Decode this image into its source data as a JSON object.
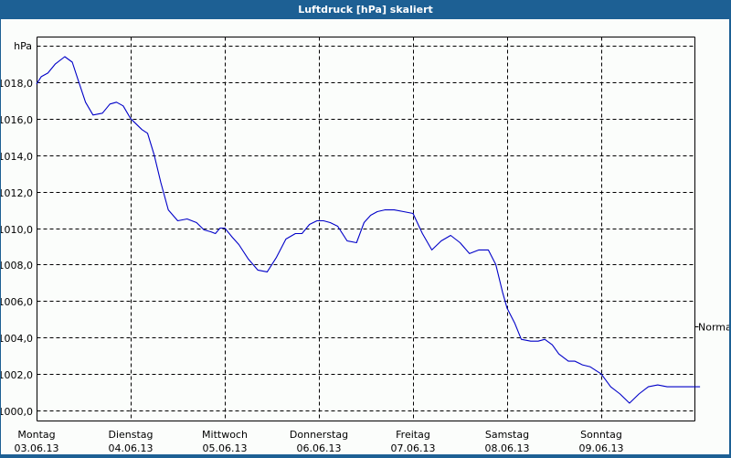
{
  "window": {
    "title": "Luftdruck [hPa] skaliert"
  },
  "chart_data": {
    "type": "line",
    "title": "Luftdruck [hPa] skaliert",
    "xlabel": "",
    "ylabel": "hPa",
    "ylim": [
      999.5,
      1020.5
    ],
    "grid": true,
    "y_ticks": [
      "1018,0",
      "1016,0",
      "1014,0",
      "1012,0",
      "1010,0",
      "1008,0",
      "1006,0",
      "1004,0",
      "1002,0",
      "1000,0"
    ],
    "y_tick_values": [
      1018,
      1016,
      1014,
      1012,
      1010,
      1008,
      1006,
      1004,
      1002,
      1000
    ],
    "y_unit_label": "hPa",
    "x_ticks": [
      {
        "day": "Montag",
        "date": "03.06.13"
      },
      {
        "day": "Dienstag",
        "date": "04.06.13"
      },
      {
        "day": "Mittwoch",
        "date": "05.06.13"
      },
      {
        "day": "Donnerstag",
        "date": "06.06.13"
      },
      {
        "day": "Freitag",
        "date": "07.06.13"
      },
      {
        "day": "Samstag",
        "date": "08.06.13"
      },
      {
        "day": "Sonntag",
        "date": "09.06.13"
      }
    ],
    "right_marker": {
      "label": "Normal",
      "value": 1004.6
    },
    "series": [
      {
        "name": "Luftdruck",
        "color": "#0000c8",
        "x_days": [
          0,
          0.05,
          0.12,
          0.2,
          0.3,
          0.38,
          0.45,
          0.52,
          0.6,
          0.7,
          0.78,
          0.85,
          0.92,
          1.0,
          1.06,
          1.12,
          1.18,
          1.25,
          1.32,
          1.4,
          1.5,
          1.6,
          1.7,
          1.78,
          1.85,
          1.9,
          1.95,
          2.0,
          2.08,
          2.15,
          2.25,
          2.35,
          2.45,
          2.55,
          2.65,
          2.75,
          2.82,
          2.9,
          2.98,
          3.05,
          3.12,
          3.2,
          3.3,
          3.4,
          3.48,
          3.55,
          3.62,
          3.7,
          3.8,
          3.9,
          4.0,
          4.1,
          4.2,
          4.3,
          4.4,
          4.5,
          4.6,
          4.7,
          4.8,
          4.88,
          4.95,
          5.0,
          5.08,
          5.15,
          5.25,
          5.33,
          5.4,
          5.48,
          5.55,
          5.65,
          5.72,
          5.8,
          5.88,
          6.0,
          6.1,
          6.2,
          6.3,
          6.4,
          6.5,
          6.6,
          6.7,
          6.8,
          6.88,
          6.95,
          7.05
        ],
        "values": [
          1017.9,
          1018.3,
          1018.5,
          1019.0,
          1019.4,
          1019.1,
          1018.0,
          1016.9,
          1016.2,
          1016.3,
          1016.8,
          1016.9,
          1016.7,
          1016.0,
          1015.7,
          1015.4,
          1015.2,
          1014.0,
          1012.5,
          1011.0,
          1010.4,
          1010.5,
          1010.3,
          1009.9,
          1009.8,
          1009.7,
          1010.0,
          1010.0,
          1009.5,
          1009.1,
          1008.3,
          1007.7,
          1007.6,
          1008.4,
          1009.4,
          1009.7,
          1009.7,
          1010.2,
          1010.4,
          1010.4,
          1010.3,
          1010.1,
          1009.3,
          1009.2,
          1010.3,
          1010.7,
          1010.9,
          1011.0,
          1011.0,
          1010.9,
          1010.8,
          1009.7,
          1008.8,
          1009.3,
          1009.6,
          1009.2,
          1008.6,
          1008.8,
          1008.8,
          1008.0,
          1006.5,
          1005.6,
          1004.8,
          1003.9,
          1003.8,
          1003.8,
          1003.9,
          1003.6,
          1003.1,
          1002.7,
          1002.7,
          1002.5,
          1002.4,
          1002.0,
          1001.3,
          1000.9,
          1000.4,
          1000.9,
          1001.3,
          1001.4,
          1001.3,
          1001.3,
          1001.3,
          1001.3,
          1001.3
        ]
      }
    ]
  }
}
